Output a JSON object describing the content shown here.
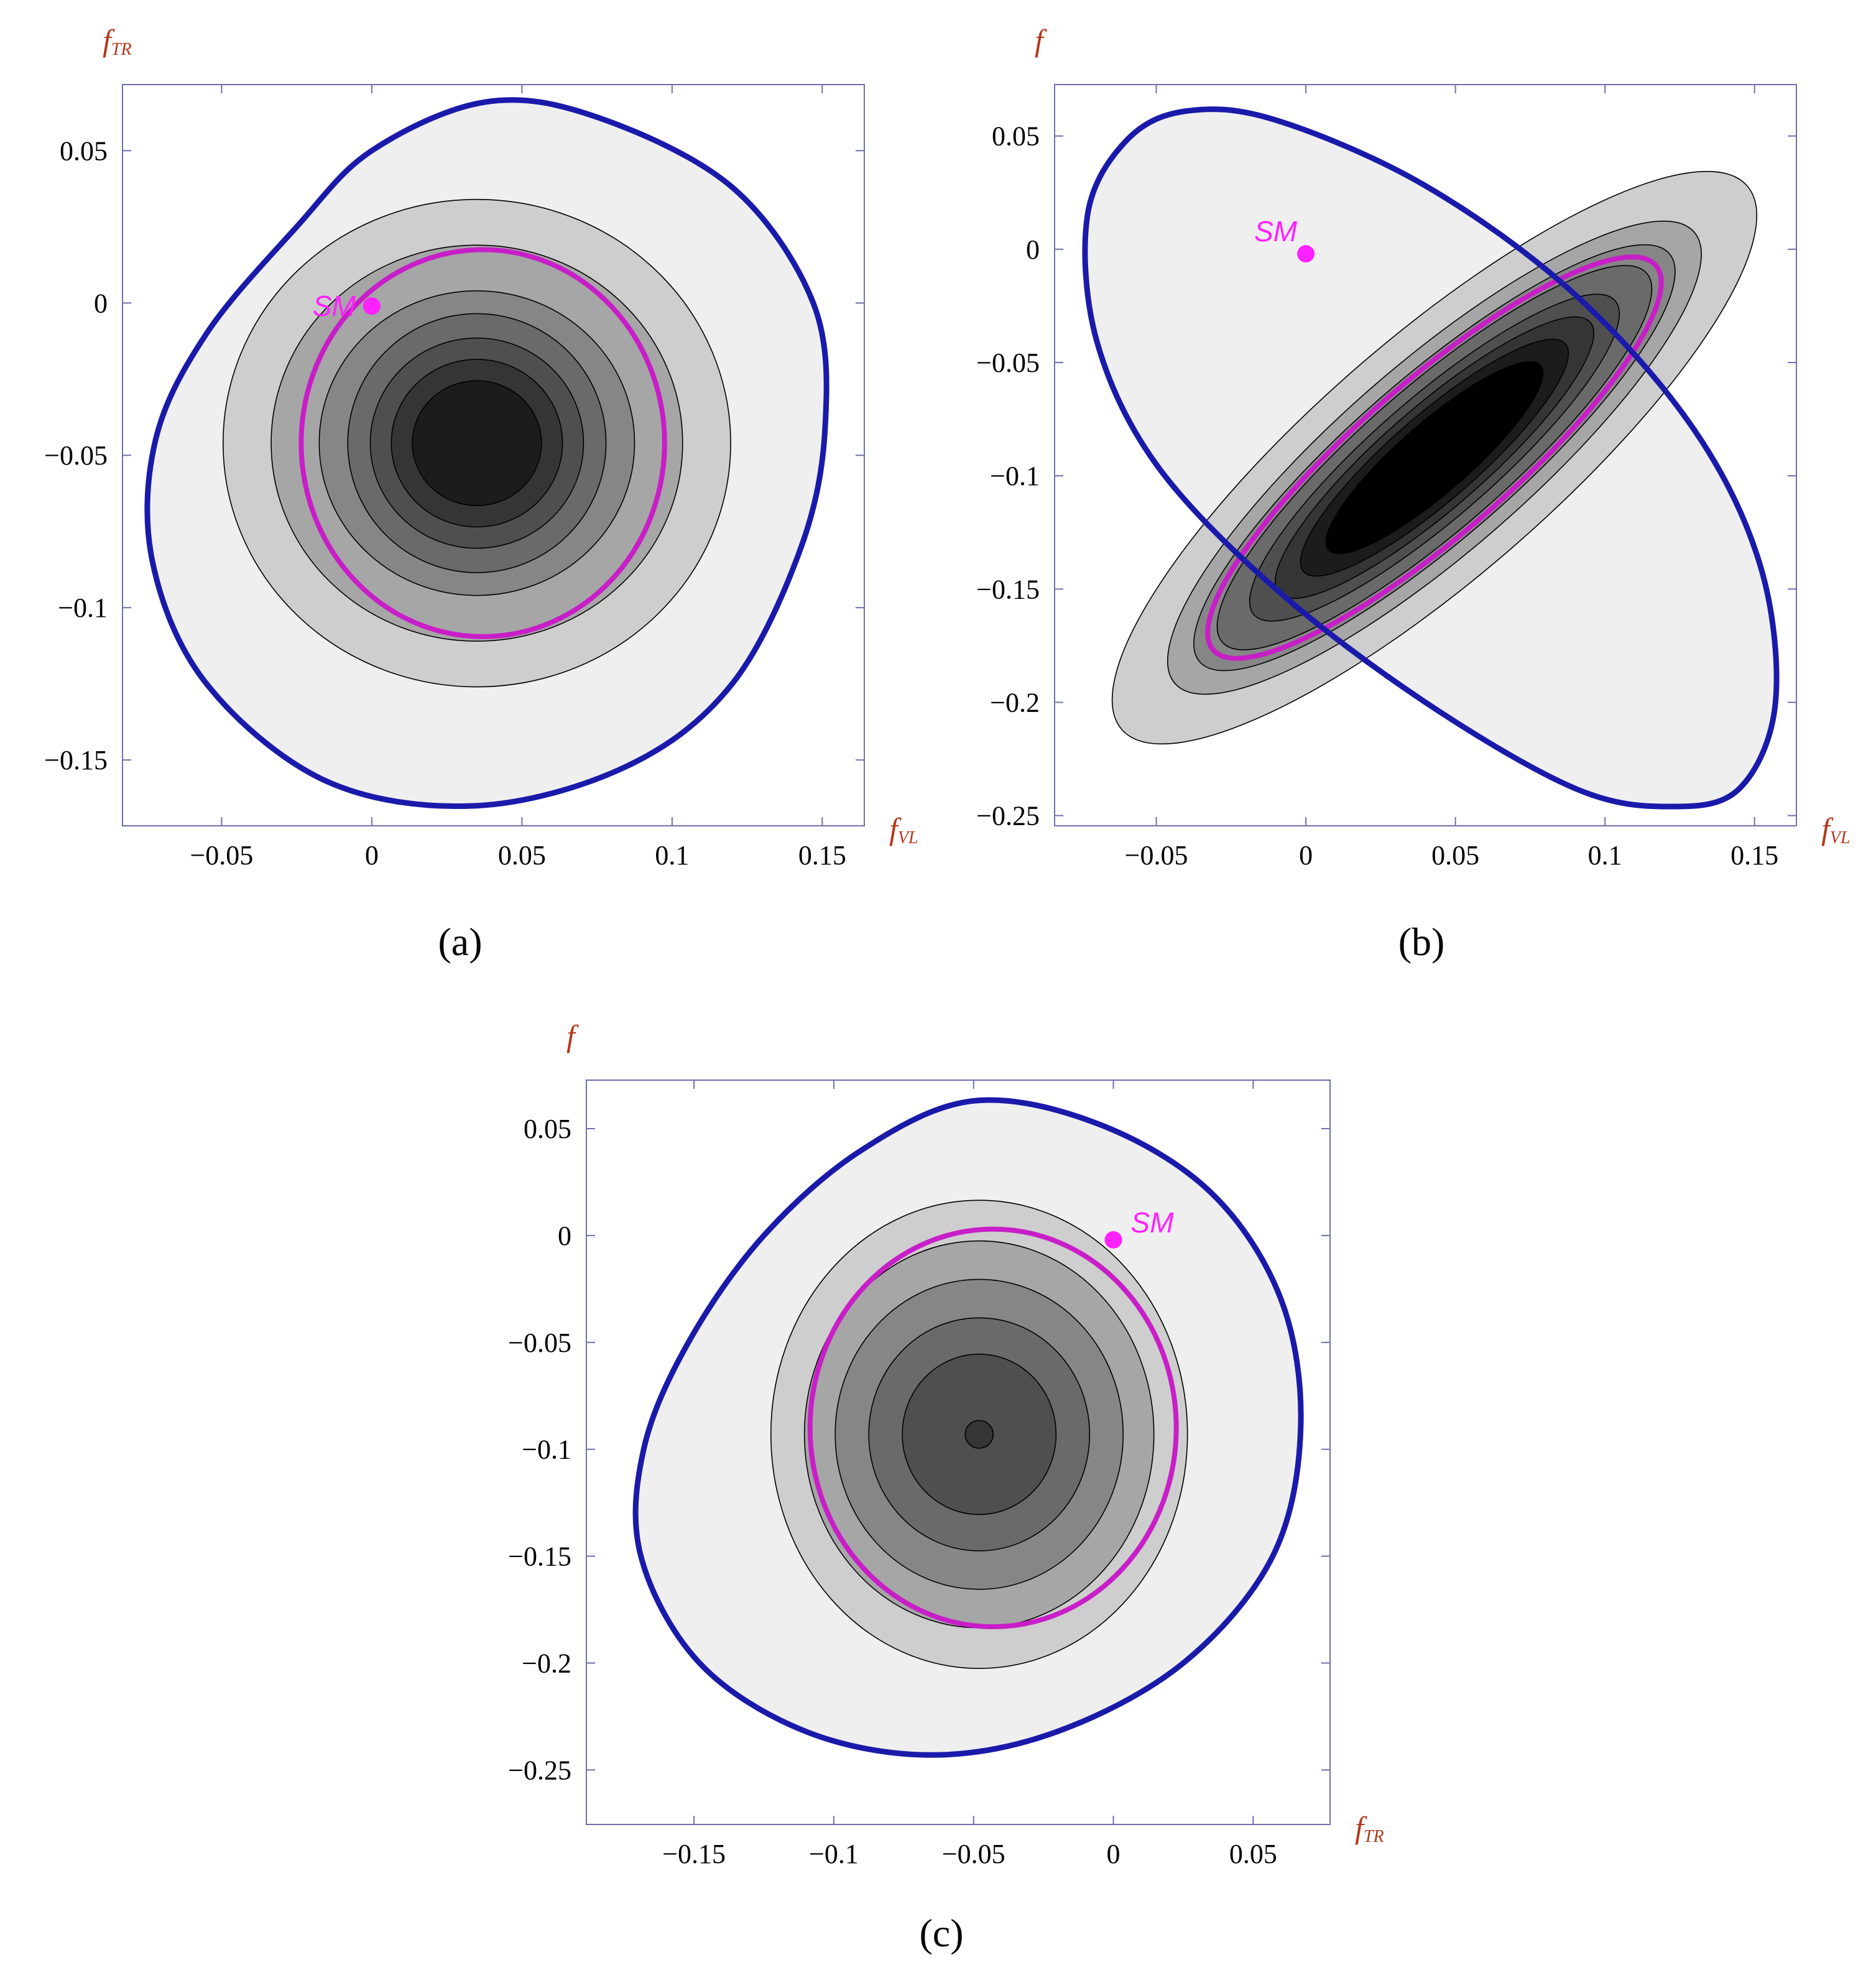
{
  "colors": {
    "axis_frame": "#6f6fae",
    "axis_label": "#b5361a",
    "boundary": "#1a1aaa",
    "sm_contour": "#c81ec8",
    "sm_point": "#ff22ff",
    "contour_fills": [
      "#efefef",
      "#cecece",
      "#a6a6a6",
      "#868686",
      "#6a6a6a",
      "#4f4f4f",
      "#353535",
      "#1c1c1c",
      "#000000"
    ]
  },
  "chart_data": [
    {
      "id": "a",
      "type": "contour",
      "caption": "(a)",
      "xlabel": {
        "main": "f",
        "sub": "VL"
      },
      "ylabel": {
        "main": "f",
        "sub": "TR"
      },
      "xlim": [
        -0.083,
        0.164
      ],
      "ylim": [
        -0.1716,
        0.0717
      ],
      "xticks": [
        {
          "v": -0.05,
          "label": "−0.05"
        },
        {
          "v": 0,
          "label": "0"
        },
        {
          "v": 0.05,
          "label": "0.05"
        },
        {
          "v": 0.1,
          "label": "0.1"
        },
        {
          "v": 0.15,
          "label": "0.15"
        }
      ],
      "yticks": [
        {
          "v": 0.05,
          "label": "0.05"
        },
        {
          "v": 0,
          "label": "0"
        },
        {
          "v": -0.05,
          "label": "−0.05"
        },
        {
          "v": -0.1,
          "label": "−0.1"
        },
        {
          "v": -0.15,
          "label": "−0.15"
        }
      ],
      "outer_boundary": [
        [
          0.038,
          0.066
        ],
        [
          0.075,
          0.061
        ],
        [
          0.12,
          0.038
        ],
        [
          0.147,
          0.0
        ],
        [
          0.151,
          -0.04
        ],
        [
          0.143,
          -0.08
        ],
        [
          0.12,
          -0.125
        ],
        [
          0.085,
          -0.152
        ],
        [
          0.035,
          -0.165
        ],
        [
          -0.015,
          -0.157
        ],
        [
          -0.055,
          -0.125
        ],
        [
          -0.073,
          -0.085
        ],
        [
          -0.072,
          -0.045
        ],
        [
          -0.055,
          -0.01
        ],
        [
          -0.025,
          0.025
        ],
        [
          0.0,
          0.05
        ]
      ],
      "center": [
        0.035,
        -0.046
      ],
      "levels": [
        {
          "rx": 0.0845,
          "ry": 0.08,
          "rot": 0
        },
        {
          "rx": 0.0685,
          "ry": 0.065,
          "rot": 0
        },
        {
          "rx": 0.0525,
          "ry": 0.05,
          "rot": 0
        },
        {
          "rx": 0.043,
          "ry": 0.0425,
          "rot": 0
        },
        {
          "rx": 0.0355,
          "ry": 0.0345,
          "rot": 0
        },
        {
          "rx": 0.0285,
          "ry": 0.0275,
          "rot": 0
        },
        {
          "rx": 0.0215,
          "ry": 0.0205,
          "rot": 0
        }
      ],
      "sm_contour": {
        "rx": 0.0605,
        "ry": 0.0635,
        "rot": 0,
        "cx": 0.037,
        "cy": -0.046
      },
      "sm_point": {
        "x": 0.0,
        "y": -0.001,
        "label": "SM",
        "label_side": "left"
      }
    },
    {
      "id": "b",
      "type": "contour",
      "caption": "(b)",
      "xlabel": {
        "main": "f",
        "sub": "VL"
      },
      "ylabel": {
        "main": "f",
        "sub": ""
      },
      "xlim": [
        -0.084,
        0.164
      ],
      "ylim": [
        -0.2545,
        0.0727
      ],
      "xticks": [
        {
          "v": -0.05,
          "label": "−0.05"
        },
        {
          "v": 0,
          "label": "0"
        },
        {
          "v": 0.05,
          "label": "0.05"
        },
        {
          "v": 0.1,
          "label": "0.1"
        },
        {
          "v": 0.15,
          "label": "0.15"
        }
      ],
      "yticks": [
        {
          "v": 0.05,
          "label": "0.05"
        },
        {
          "v": 0,
          "label": "0"
        },
        {
          "v": -0.05,
          "label": "−0.05"
        },
        {
          "v": -0.1,
          "label": "−0.1"
        },
        {
          "v": -0.15,
          "label": "−0.15"
        },
        {
          "v": -0.2,
          "label": "−0.2"
        },
        {
          "v": -0.25,
          "label": "−0.25"
        }
      ],
      "outer_boundary": [
        [
          -0.06,
          0.048
        ],
        [
          -0.04,
          0.061
        ],
        [
          -0.01,
          0.057
        ],
        [
          0.04,
          0.028
        ],
        [
          0.09,
          -0.02
        ],
        [
          0.13,
          -0.08
        ],
        [
          0.152,
          -0.14
        ],
        [
          0.157,
          -0.2
        ],
        [
          0.145,
          -0.238
        ],
        [
          0.122,
          -0.246
        ],
        [
          0.09,
          -0.238
        ],
        [
          0.04,
          -0.2
        ],
        [
          -0.01,
          -0.15
        ],
        [
          -0.05,
          -0.095
        ],
        [
          -0.07,
          -0.04
        ],
        [
          -0.073,
          0.015
        ]
      ],
      "center": [
        0.043,
        -0.092
      ],
      "levels": [
        {
          "rx": 0.1385,
          "ry": 0.0525,
          "rot": -41
        },
        {
          "rx": 0.115,
          "ry": 0.0415,
          "rot": -41
        },
        {
          "rx": 0.104,
          "ry": 0.0355,
          "rot": -41
        },
        {
          "rx": 0.094,
          "ry": 0.0315,
          "rot": -41
        },
        {
          "rx": 0.08,
          "ry": 0.0265,
          "rot": -41
        },
        {
          "rx": 0.069,
          "ry": 0.0225,
          "rot": -41
        },
        {
          "rx": 0.058,
          "ry": 0.019,
          "rot": -41
        },
        {
          "rx": 0.047,
          "ry": 0.0155,
          "rot": -41
        }
      ],
      "sm_contour": {
        "rx": 0.098,
        "ry": 0.0335,
        "rot": -41,
        "cx": 0.043,
        "cy": -0.092
      },
      "sm_point": {
        "x": 0.0,
        "y": -0.002,
        "label": "SM",
        "label_side": "up"
      }
    },
    {
      "id": "c",
      "type": "contour",
      "caption": "(c)",
      "xlabel": {
        "main": "f",
        "sub": "TR"
      },
      "ylabel": {
        "main": "f",
        "sub": ""
      },
      "xlim": [
        -0.1885,
        0.0775
      ],
      "ylim": [
        -0.2755,
        0.0727
      ],
      "xticks": [
        {
          "v": -0.15,
          "label": "−0.15"
        },
        {
          "v": -0.1,
          "label": "−0.1"
        },
        {
          "v": -0.05,
          "label": "−0.05"
        },
        {
          "v": 0,
          "label": "0"
        },
        {
          "v": 0.05,
          "label": "0.05"
        }
      ],
      "yticks": [
        {
          "v": 0.05,
          "label": "0.05"
        },
        {
          "v": 0,
          "label": "0"
        },
        {
          "v": -0.05,
          "label": "−0.05"
        },
        {
          "v": -0.1,
          "label": "−0.1"
        },
        {
          "v": -0.15,
          "label": "−0.15"
        },
        {
          "v": -0.2,
          "label": "−0.2"
        },
        {
          "v": -0.25,
          "label": "−0.25"
        }
      ],
      "outer_boundary": [
        [
          -0.05,
          0.063
        ],
        [
          -0.005,
          0.052
        ],
        [
          0.035,
          0.02
        ],
        [
          0.06,
          -0.03
        ],
        [
          0.067,
          -0.09
        ],
        [
          0.057,
          -0.15
        ],
        [
          0.025,
          -0.2
        ],
        [
          -0.02,
          -0.232
        ],
        [
          -0.065,
          -0.243
        ],
        [
          -0.11,
          -0.232
        ],
        [
          -0.148,
          -0.2
        ],
        [
          -0.169,
          -0.15
        ],
        [
          -0.168,
          -0.1
        ],
        [
          -0.152,
          -0.05
        ],
        [
          -0.125,
          0.0
        ],
        [
          -0.09,
          0.04
        ]
      ],
      "center": [
        -0.048,
        -0.093
      ],
      "levels": [
        {
          "rx": 0.0745,
          "ry": 0.1095,
          "rot": 0
        },
        {
          "rx": 0.0625,
          "ry": 0.0905,
          "rot": 0
        },
        {
          "rx": 0.0515,
          "ry": 0.0725,
          "rot": 0
        },
        {
          "rx": 0.0395,
          "ry": 0.0545,
          "rot": 0
        },
        {
          "rx": 0.0275,
          "ry": 0.0375,
          "rot": 0
        },
        {
          "rx": 0.005,
          "ry": 0.0065,
          "rot": 0
        }
      ],
      "sm_contour": {
        "rx": 0.0655,
        "ry": 0.093,
        "rot": 0,
        "cx": -0.043,
        "cy": -0.09
      },
      "sm_point": {
        "x": 0.0,
        "y": -0.002,
        "label": "SM",
        "label_side": "right"
      }
    }
  ]
}
